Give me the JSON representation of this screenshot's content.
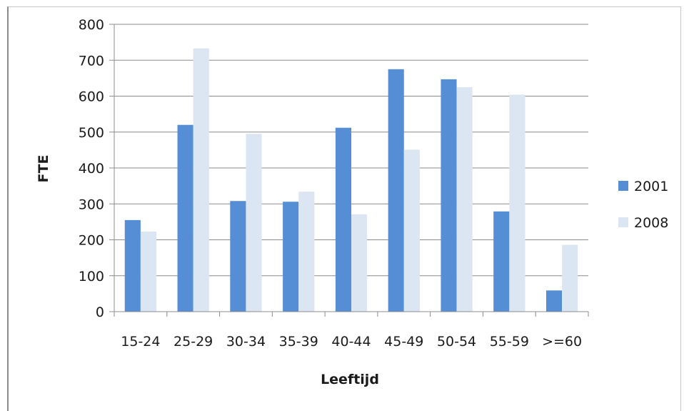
{
  "caption": "",
  "chart_data": {
    "type": "bar",
    "categories": [
      "15-24",
      "25-29",
      "30-34",
      "35-39",
      "40-44",
      "45-49",
      "50-54",
      "55-59",
      ">=60"
    ],
    "series": [
      {
        "name": "2001",
        "color": "#558ed5",
        "values": [
          255,
          520,
          308,
          306,
          512,
          675,
          647,
          279,
          59
        ]
      },
      {
        "name": "2008",
        "color": "#dce6f2",
        "values": [
          223,
          733,
          495,
          334,
          271,
          451,
          625,
          604,
          186
        ]
      }
    ],
    "xlabel": "Leeftijd",
    "ylabel": "FTE",
    "ylim": [
      0,
      800
    ],
    "yticks": [
      0,
      100,
      200,
      300,
      400,
      500,
      600,
      700,
      800
    ],
    "grid": true,
    "legend": "right"
  }
}
